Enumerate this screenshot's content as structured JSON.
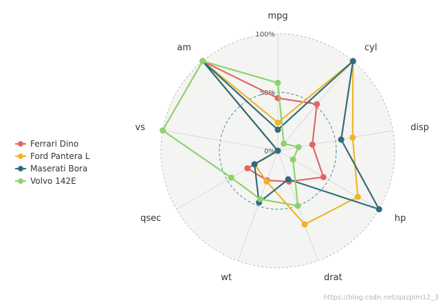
{
  "chart_data": {
    "type": "radar",
    "axes": [
      "mpg",
      "cyl",
      "disp",
      "hp",
      "drat",
      "wt",
      "qsec",
      "vs",
      "am"
    ],
    "ticks": [
      {
        "value": 0,
        "label": "0%"
      },
      {
        "value": 50,
        "label": "50%"
      },
      {
        "value": 100,
        "label": "100%"
      }
    ],
    "range": [
      0,
      100
    ],
    "legend_position": "left",
    "series": [
      {
        "name": "Ferrari Dino",
        "color": "#e06666",
        "values": [
          45,
          52,
          30,
          45,
          28,
          27,
          30,
          0,
          100
        ]
      },
      {
        "name": "Ford Pantera L",
        "color": "#f0b429",
        "values": [
          24,
          100,
          65,
          79,
          67,
          28,
          23,
          0,
          100
        ]
      },
      {
        "name": "Maserati Bora",
        "color": "#2f6b7d",
        "values": [
          18,
          100,
          55,
          100,
          26,
          47,
          23,
          0,
          100
        ]
      },
      {
        "name": "Volvo 142E",
        "color": "#8fd16a",
        "values": [
          58,
          8,
          18,
          15,
          50,
          44,
          46,
          100,
          100
        ]
      }
    ]
  },
  "watermark": "https://blog.csdn.net/qazplm12_3"
}
